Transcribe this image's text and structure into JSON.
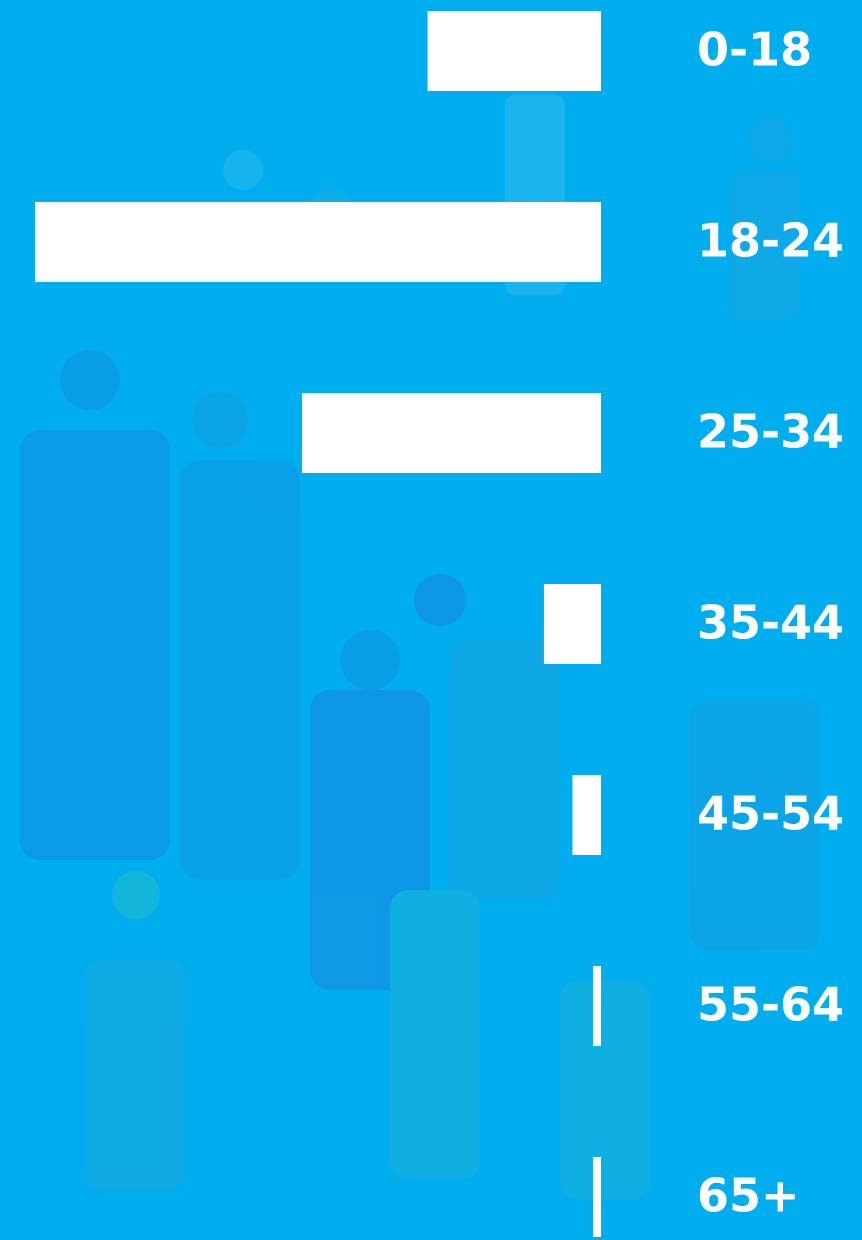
{
  "chart_data": {
    "type": "bar",
    "orientation": "horizontal",
    "color": "#ffffff",
    "categories": [
      "0-18",
      "18-24",
      "25-34",
      "35-44",
      "45-54",
      "55-64",
      "65+"
    ],
    "values": [
      15.2,
      49.6,
      26.2,
      5.0,
      2.5,
      0.7,
      0.7
    ]
  }
}
